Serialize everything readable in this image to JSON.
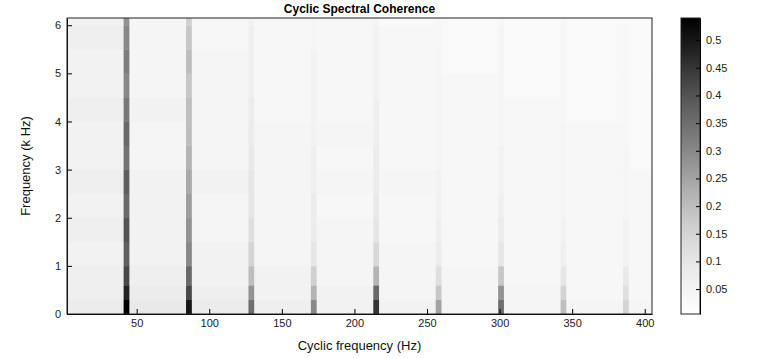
{
  "chart_data": {
    "type": "heatmap",
    "title": "Cyclic Spectral Coherence",
    "x_label": "Cyclic frequency (Hz)",
    "y_label": "Frequency (k Hz)",
    "xlim": [
      2,
      405
    ],
    "ylim": [
      0,
      6.15
    ],
    "xticks": [
      50,
      100,
      150,
      200,
      250,
      300,
      350,
      400
    ],
    "yticks": [
      0,
      1,
      2,
      3,
      4,
      5,
      6
    ],
    "x_edges": [
      2,
      41,
      45,
      84,
      88,
      127,
      131,
      170,
      174,
      213,
      217,
      256,
      260,
      299,
      303,
      342,
      346,
      385,
      389,
      405
    ],
    "y_edges": [
      0,
      0.3,
      0.6,
      1,
      1.5,
      2,
      2.5,
      3,
      3.5,
      4,
      4.5,
      5,
      5.5,
      6,
      6.15
    ],
    "cells": [
      [
        0.08,
        0.54,
        0.09,
        0.5,
        0.08,
        0.35,
        0.07,
        0.3,
        0.06,
        0.45,
        0.06,
        0.25,
        0.05,
        0.35,
        0.05,
        0.2,
        0.05,
        0.15,
        0.05
      ],
      [
        0.07,
        0.48,
        0.08,
        0.42,
        0.07,
        0.28,
        0.06,
        0.22,
        0.06,
        0.36,
        0.05,
        0.18,
        0.05,
        0.28,
        0.05,
        0.15,
        0.04,
        0.12,
        0.04
      ],
      [
        0.07,
        0.42,
        0.07,
        0.36,
        0.06,
        0.2,
        0.06,
        0.16,
        0.05,
        0.22,
        0.05,
        0.12,
        0.05,
        0.18,
        0.04,
        0.1,
        0.04,
        0.09,
        0.04
      ],
      [
        0.06,
        0.38,
        0.06,
        0.3,
        0.06,
        0.15,
        0.05,
        0.1,
        0.05,
        0.14,
        0.05,
        0.08,
        0.04,
        0.1,
        0.04,
        0.07,
        0.04,
        0.06,
        0.04
      ],
      [
        0.07,
        0.4,
        0.06,
        0.28,
        0.05,
        0.12,
        0.05,
        0.08,
        0.05,
        0.1,
        0.04,
        0.07,
        0.04,
        0.08,
        0.04,
        0.06,
        0.04,
        0.06,
        0.04
      ],
      [
        0.06,
        0.36,
        0.06,
        0.26,
        0.05,
        0.1,
        0.05,
        0.08,
        0.04,
        0.09,
        0.04,
        0.06,
        0.04,
        0.07,
        0.04,
        0.05,
        0.04,
        0.05,
        0.04
      ],
      [
        0.07,
        0.38,
        0.06,
        0.24,
        0.06,
        0.1,
        0.05,
        0.07,
        0.05,
        0.08,
        0.05,
        0.06,
        0.04,
        0.06,
        0.04,
        0.05,
        0.04,
        0.05,
        0.04
      ],
      [
        0.06,
        0.34,
        0.05,
        0.22,
        0.05,
        0.09,
        0.05,
        0.07,
        0.04,
        0.08,
        0.04,
        0.05,
        0.04,
        0.06,
        0.04,
        0.05,
        0.04,
        0.05,
        0.03
      ],
      [
        0.06,
        0.36,
        0.05,
        0.2,
        0.05,
        0.08,
        0.05,
        0.06,
        0.05,
        0.07,
        0.04,
        0.05,
        0.04,
        0.05,
        0.04,
        0.05,
        0.04,
        0.04,
        0.03
      ],
      [
        0.07,
        0.33,
        0.06,
        0.2,
        0.05,
        0.08,
        0.04,
        0.06,
        0.04,
        0.07,
        0.04,
        0.05,
        0.04,
        0.05,
        0.04,
        0.04,
        0.03,
        0.04,
        0.03
      ],
      [
        0.06,
        0.3,
        0.05,
        0.18,
        0.05,
        0.07,
        0.04,
        0.06,
        0.04,
        0.06,
        0.04,
        0.05,
        0.04,
        0.05,
        0.03,
        0.04,
        0.03,
        0.04,
        0.03
      ],
      [
        0.06,
        0.32,
        0.05,
        0.2,
        0.05,
        0.07,
        0.04,
        0.06,
        0.04,
        0.06,
        0.04,
        0.05,
        0.03,
        0.05,
        0.03,
        0.04,
        0.03,
        0.04,
        0.03
      ],
      [
        0.07,
        0.3,
        0.05,
        0.18,
        0.04,
        0.07,
        0.04,
        0.05,
        0.04,
        0.06,
        0.04,
        0.04,
        0.03,
        0.05,
        0.03,
        0.04,
        0.03,
        0.04,
        0.03
      ],
      [
        0.06,
        0.28,
        0.05,
        0.16,
        0.04,
        0.06,
        0.04,
        0.05,
        0.04,
        0.05,
        0.03,
        0.04,
        0.03,
        0.04,
        0.03,
        0.04,
        0.03,
        0.03,
        0.03
      ]
    ],
    "colorbar": {
      "range": [
        0.005,
        0.54
      ],
      "ticks": [
        0.05,
        0.1,
        0.15,
        0.2,
        0.25,
        0.3,
        0.35,
        0.4,
        0.45,
        0.5
      ]
    }
  }
}
